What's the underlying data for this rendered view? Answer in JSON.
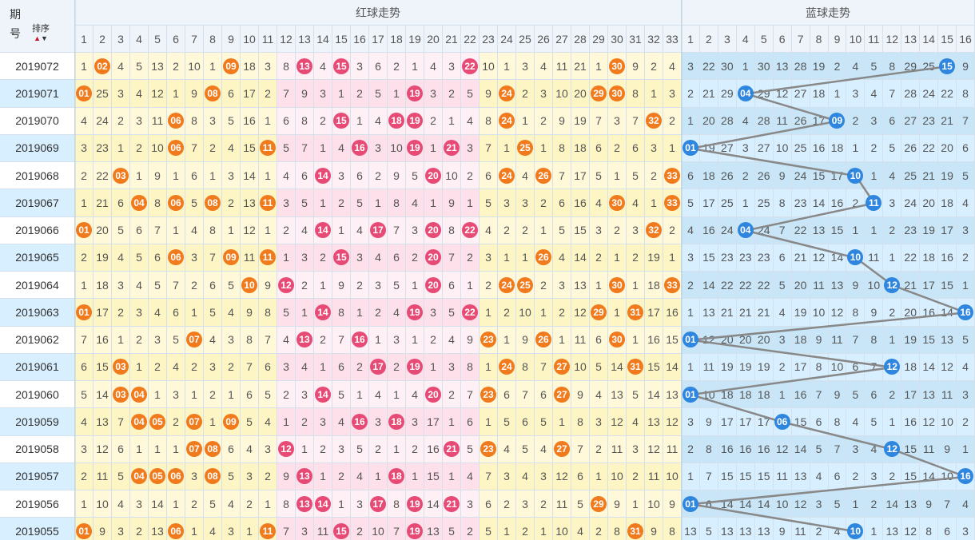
{
  "header": {
    "issue_top": "期",
    "issue_bottom": "号",
    "sort_label": "排序",
    "sort_up_icon": "▲",
    "sort_down_icon": "▼",
    "red_section": "红球走势",
    "blue_section": "蓝球走势"
  },
  "red_numbers": [
    "1",
    "2",
    "3",
    "4",
    "5",
    "6",
    "7",
    "8",
    "9",
    "10",
    "11",
    "12",
    "13",
    "14",
    "15",
    "16",
    "17",
    "18",
    "19",
    "20",
    "21",
    "22",
    "23",
    "24",
    "25",
    "26",
    "27",
    "28",
    "29",
    "30",
    "31",
    "32",
    "33"
  ],
  "blue_numbers": [
    "1",
    "2",
    "3",
    "4",
    "5",
    "6",
    "7",
    "8",
    "9",
    "10",
    "11",
    "12",
    "13",
    "14",
    "15",
    "16"
  ],
  "colors": {
    "zone_yellow": "#fdf5c4",
    "zone_pink": "#fde0ea",
    "zone_yellow_even": "#fff9d9",
    "zone_pink_even": "#fff0f5",
    "blue_odd": "#c8e6f8",
    "blue_even": "#d8efff",
    "issue_odd": "#ffffff",
    "issue_even": "#d8efff",
    "ball_orange": "#f07a1c",
    "ball_pink": "#e84a76",
    "ball_blue": "#2f86de",
    "trend_line": "#888888"
  },
  "rows": [
    {
      "issue": "2019072",
      "red": [
        "1",
        "02",
        "4",
        "5",
        "13",
        "2",
        "10",
        "1",
        "09",
        "18",
        "3",
        "8",
        "13",
        "4",
        "15",
        "3",
        "6",
        "2",
        "1",
        "4",
        "3",
        "22",
        "10",
        "1",
        "3",
        "4",
        "11",
        "21",
        "1",
        "30",
        "9",
        "2",
        "4"
      ],
      "blue": [
        "3",
        "22",
        "30",
        "1",
        "30",
        "13",
        "28",
        "19",
        "2",
        "4",
        "5",
        "8",
        "29",
        "25",
        "15",
        "9"
      ],
      "blue_pick": 15
    },
    {
      "issue": "2019071",
      "red": [
        "01",
        "25",
        "3",
        "4",
        "12",
        "1",
        "9",
        "08",
        "6",
        "17",
        "2",
        "7",
        "9",
        "3",
        "1",
        "2",
        "5",
        "1",
        "19",
        "3",
        "2",
        "5",
        "9",
        "24",
        "2",
        "3",
        "10",
        "20",
        "29",
        "30",
        "8",
        "1",
        "3"
      ],
      "blue": [
        "2",
        "21",
        "29",
        "04",
        "29",
        "12",
        "27",
        "18",
        "1",
        "3",
        "4",
        "7",
        "28",
        "24",
        "22",
        "8"
      ],
      "blue_pick": 4
    },
    {
      "issue": "2019070",
      "red": [
        "4",
        "24",
        "2",
        "3",
        "11",
        "06",
        "8",
        "3",
        "5",
        "16",
        "1",
        "6",
        "8",
        "2",
        "15",
        "1",
        "4",
        "18",
        "19",
        "2",
        "1",
        "4",
        "8",
        "24",
        "1",
        "2",
        "9",
        "19",
        "7",
        "3",
        "7",
        "32",
        "2"
      ],
      "blue": [
        "1",
        "20",
        "28",
        "4",
        "28",
        "11",
        "26",
        "17",
        "09",
        "2",
        "3",
        "6",
        "27",
        "23",
        "21",
        "7"
      ],
      "blue_pick": 9
    },
    {
      "issue": "2019069",
      "red": [
        "3",
        "23",
        "1",
        "2",
        "10",
        "06",
        "7",
        "2",
        "4",
        "15",
        "11",
        "5",
        "7",
        "1",
        "4",
        "16",
        "3",
        "10",
        "19",
        "1",
        "21",
        "3",
        "7",
        "1",
        "25",
        "1",
        "8",
        "18",
        "6",
        "2",
        "6",
        "3",
        "1"
      ],
      "blue": [
        "01",
        "19",
        "27",
        "3",
        "27",
        "10",
        "25",
        "16",
        "18",
        "1",
        "2",
        "5",
        "26",
        "22",
        "20",
        "6"
      ],
      "blue_pick": 1
    },
    {
      "issue": "2019068",
      "red": [
        "2",
        "22",
        "03",
        "1",
        "9",
        "1",
        "6",
        "1",
        "3",
        "14",
        "1",
        "4",
        "6",
        "14",
        "3",
        "6",
        "2",
        "9",
        "5",
        "20",
        "10",
        "2",
        "6",
        "24",
        "4",
        "26",
        "7",
        "17",
        "5",
        "1",
        "5",
        "2",
        "33"
      ],
      "blue": [
        "6",
        "18",
        "26",
        "2",
        "26",
        "9",
        "24",
        "15",
        "17",
        "10",
        "1",
        "4",
        "25",
        "21",
        "19",
        "5"
      ],
      "blue_pick": 10
    },
    {
      "issue": "2019067",
      "red": [
        "1",
        "21",
        "6",
        "04",
        "8",
        "06",
        "5",
        "08",
        "2",
        "13",
        "11",
        "3",
        "5",
        "1",
        "2",
        "5",
        "1",
        "8",
        "4",
        "1",
        "9",
        "1",
        "5",
        "3",
        "3",
        "2",
        "6",
        "16",
        "4",
        "30",
        "4",
        "1",
        "33"
      ],
      "blue": [
        "5",
        "17",
        "25",
        "1",
        "25",
        "8",
        "23",
        "14",
        "16",
        "2",
        "11",
        "3",
        "24",
        "20",
        "18",
        "4"
      ],
      "blue_pick": 11
    },
    {
      "issue": "2019066",
      "red": [
        "01",
        "20",
        "5",
        "6",
        "7",
        "1",
        "4",
        "8",
        "1",
        "12",
        "1",
        "2",
        "4",
        "14",
        "1",
        "4",
        "17",
        "7",
        "3",
        "20",
        "8",
        "22",
        "4",
        "2",
        "2",
        "1",
        "5",
        "15",
        "3",
        "2",
        "3",
        "32",
        "2"
      ],
      "blue": [
        "4",
        "16",
        "24",
        "04",
        "24",
        "7",
        "22",
        "13",
        "15",
        "1",
        "1",
        "2",
        "23",
        "19",
        "17",
        "3"
      ],
      "blue_pick": 4
    },
    {
      "issue": "2019065",
      "red": [
        "2",
        "19",
        "4",
        "5",
        "6",
        "06",
        "3",
        "7",
        "09",
        "11",
        "11",
        "1",
        "3",
        "2",
        "15",
        "3",
        "4",
        "6",
        "2",
        "20",
        "7",
        "2",
        "3",
        "1",
        "1",
        "26",
        "4",
        "14",
        "2",
        "1",
        "2",
        "19",
        "1"
      ],
      "blue": [
        "3",
        "15",
        "23",
        "23",
        "23",
        "6",
        "21",
        "12",
        "14",
        "10",
        "11",
        "1",
        "22",
        "18",
        "16",
        "2"
      ],
      "blue_pick": 10
    },
    {
      "issue": "2019064",
      "red": [
        "1",
        "18",
        "3",
        "4",
        "5",
        "7",
        "2",
        "6",
        "5",
        "10",
        "9",
        "12",
        "2",
        "1",
        "9",
        "2",
        "3",
        "5",
        "1",
        "20",
        "6",
        "1",
        "2",
        "24",
        "25",
        "2",
        "3",
        "13",
        "1",
        "30",
        "1",
        "18",
        "33"
      ],
      "blue": [
        "2",
        "14",
        "22",
        "22",
        "22",
        "5",
        "20",
        "11",
        "13",
        "9",
        "10",
        "12",
        "21",
        "17",
        "15",
        "1"
      ],
      "blue_pick": 12
    },
    {
      "issue": "2019063",
      "red": [
        "01",
        "17",
        "2",
        "3",
        "4",
        "6",
        "1",
        "5",
        "4",
        "9",
        "8",
        "5",
        "1",
        "14",
        "8",
        "1",
        "2",
        "4",
        "19",
        "3",
        "5",
        "22",
        "1",
        "2",
        "10",
        "1",
        "2",
        "12",
        "29",
        "1",
        "31",
        "17",
        "16"
      ],
      "blue": [
        "1",
        "13",
        "21",
        "21",
        "21",
        "4",
        "19",
        "10",
        "12",
        "8",
        "9",
        "2",
        "20",
        "16",
        "14",
        "16"
      ],
      "blue_pick": 16
    },
    {
      "issue": "2019062",
      "red": [
        "7",
        "16",
        "1",
        "2",
        "3",
        "5",
        "07",
        "4",
        "3",
        "8",
        "7",
        "4",
        "13",
        "2",
        "7",
        "16",
        "1",
        "3",
        "1",
        "2",
        "4",
        "9",
        "23",
        "1",
        "9",
        "26",
        "1",
        "11",
        "6",
        "30",
        "1",
        "16",
        "15"
      ],
      "blue": [
        "01",
        "12",
        "20",
        "20",
        "20",
        "3",
        "18",
        "9",
        "11",
        "7",
        "8",
        "1",
        "19",
        "15",
        "13",
        "5"
      ],
      "blue_pick": 1
    },
    {
      "issue": "2019061",
      "red": [
        "6",
        "15",
        "03",
        "1",
        "2",
        "4",
        "2",
        "3",
        "2",
        "7",
        "6",
        "3",
        "4",
        "1",
        "6",
        "2",
        "17",
        "2",
        "19",
        "1",
        "3",
        "8",
        "1",
        "24",
        "8",
        "7",
        "27",
        "10",
        "5",
        "14",
        "31",
        "15",
        "14"
      ],
      "blue": [
        "1",
        "11",
        "19",
        "19",
        "19",
        "2",
        "17",
        "8",
        "10",
        "6",
        "7",
        "12",
        "18",
        "14",
        "12",
        "4"
      ],
      "blue_pick": 12
    },
    {
      "issue": "2019060",
      "red": [
        "5",
        "14",
        "03",
        "04",
        "1",
        "3",
        "1",
        "2",
        "1",
        "6",
        "5",
        "2",
        "3",
        "14",
        "5",
        "1",
        "4",
        "1",
        "4",
        "20",
        "2",
        "7",
        "23",
        "6",
        "7",
        "6",
        "27",
        "9",
        "4",
        "13",
        "5",
        "14",
        "13"
      ],
      "blue": [
        "01",
        "10",
        "18",
        "18",
        "18",
        "1",
        "16",
        "7",
        "9",
        "5",
        "6",
        "2",
        "17",
        "13",
        "11",
        "3"
      ],
      "blue_pick": 1
    },
    {
      "issue": "2019059",
      "red": [
        "4",
        "13",
        "7",
        "04",
        "05",
        "2",
        "07",
        "1",
        "09",
        "5",
        "4",
        "1",
        "2",
        "3",
        "4",
        "16",
        "3",
        "18",
        "3",
        "17",
        "1",
        "6",
        "1",
        "5",
        "6",
        "5",
        "1",
        "8",
        "3",
        "12",
        "4",
        "13",
        "12"
      ],
      "blue": [
        "3",
        "9",
        "17",
        "17",
        "17",
        "06",
        "15",
        "6",
        "8",
        "4",
        "5",
        "1",
        "16",
        "12",
        "10",
        "2"
      ],
      "blue_pick": 6
    },
    {
      "issue": "2019058",
      "red": [
        "3",
        "12",
        "6",
        "1",
        "1",
        "1",
        "07",
        "08",
        "6",
        "4",
        "3",
        "12",
        "1",
        "2",
        "3",
        "5",
        "2",
        "1",
        "2",
        "16",
        "21",
        "5",
        "23",
        "4",
        "5",
        "4",
        "27",
        "7",
        "2",
        "11",
        "3",
        "12",
        "11"
      ],
      "blue": [
        "2",
        "8",
        "16",
        "16",
        "16",
        "12",
        "14",
        "5",
        "7",
        "3",
        "4",
        "12",
        "15",
        "11",
        "9",
        "1"
      ],
      "blue_pick": 12
    },
    {
      "issue": "2019057",
      "red": [
        "2",
        "11",
        "5",
        "04",
        "05",
        "06",
        "3",
        "08",
        "5",
        "3",
        "2",
        "9",
        "13",
        "1",
        "2",
        "4",
        "1",
        "18",
        "1",
        "15",
        "1",
        "4",
        "7",
        "3",
        "4",
        "3",
        "12",
        "6",
        "1",
        "10",
        "2",
        "11",
        "10"
      ],
      "blue": [
        "1",
        "7",
        "15",
        "15",
        "15",
        "11",
        "13",
        "4",
        "6",
        "2",
        "3",
        "2",
        "15",
        "14",
        "10",
        "16"
      ],
      "blue_pick": 16
    },
    {
      "issue": "2019056",
      "red": [
        "1",
        "10",
        "4",
        "3",
        "14",
        "1",
        "2",
        "5",
        "4",
        "2",
        "1",
        "8",
        "13",
        "14",
        "1",
        "3",
        "17",
        "8",
        "19",
        "14",
        "21",
        "3",
        "6",
        "2",
        "3",
        "2",
        "11",
        "5",
        "29",
        "9",
        "1",
        "10",
        "9"
      ],
      "blue": [
        "01",
        "6",
        "14",
        "14",
        "14",
        "10",
        "12",
        "3",
        "5",
        "1",
        "2",
        "14",
        "13",
        "9",
        "7",
        "4"
      ],
      "blue_pick": 1
    },
    {
      "issue": "2019055",
      "red": [
        "01",
        "9",
        "3",
        "2",
        "13",
        "06",
        "1",
        "4",
        "3",
        "1",
        "11",
        "7",
        "3",
        "11",
        "15",
        "2",
        "10",
        "7",
        "19",
        "13",
        "5",
        "2",
        "5",
        "1",
        "2",
        "1",
        "10",
        "4",
        "2",
        "8",
        "31",
        "9",
        "8"
      ],
      "blue": [
        "13",
        "5",
        "13",
        "13",
        "13",
        "9",
        "11",
        "2",
        "4",
        "10",
        "1",
        "13",
        "12",
        "8",
        "6",
        "3"
      ],
      "blue_pick": 10
    }
  ]
}
